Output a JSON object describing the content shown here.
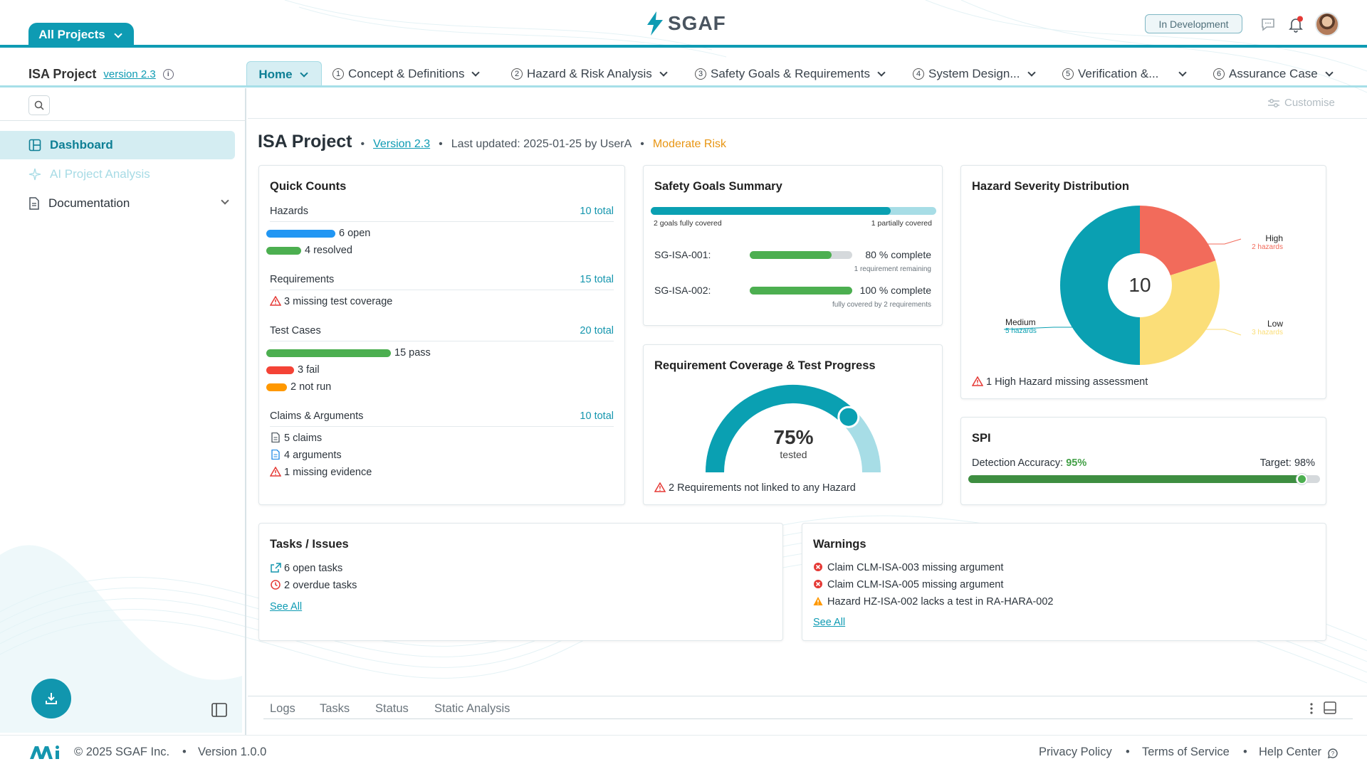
{
  "header": {
    "all_projects": "All Projects",
    "logo_text": "SGAF",
    "status_badge": "In Development"
  },
  "nav": {
    "project_name": "ISA Project",
    "version": "version 2.3",
    "tabs": [
      {
        "label": "Home",
        "num": ""
      },
      {
        "label": "Concept & Definitions",
        "num": "1"
      },
      {
        "label": "Hazard & Risk Analysis",
        "num": "2"
      },
      {
        "label": "Safety Goals & Requirements",
        "num": "3"
      },
      {
        "label": "System Design...",
        "num": "4"
      },
      {
        "label": "Verification &...",
        "num": "5"
      },
      {
        "label": "Assurance Case",
        "num": "6"
      }
    ]
  },
  "sidebar": {
    "items": [
      {
        "label": "Dashboard"
      },
      {
        "label": "AI Project Analysis"
      },
      {
        "label": "Documentation"
      }
    ]
  },
  "toolbar": {
    "customise": "Customise"
  },
  "page": {
    "title": "ISA Project",
    "version": "Version 2.3",
    "updated": "Last updated: 2025-01-25 by UserA",
    "risk": "Moderate Risk",
    "risk_color": "#e89512"
  },
  "quick_counts": {
    "title": "Quick Counts",
    "hazards": {
      "label": "Hazards",
      "total": "10 total",
      "open": "6 open",
      "resolved": "4 resolved"
    },
    "requirements": {
      "label": "Requirements",
      "total": "15 total",
      "missing": "3 missing test coverage"
    },
    "test_cases": {
      "label": "Test Cases",
      "total": "20 total",
      "pass": "15 pass",
      "fail": "3 fail",
      "not_run": "2 not run"
    },
    "claims": {
      "label": "Claims & Arguments",
      "total": "10 total",
      "claims": "5 claims",
      "arguments": "4 arguments",
      "missing": "1 missing evidence"
    }
  },
  "safety_goals": {
    "title": "Safety Goals Summary",
    "coverage_fraction": 0.84,
    "fully_covered": "2 goals fully covered",
    "partially_covered": "1 partially covered",
    "goals": [
      {
        "id": "SG-ISA-001:",
        "fraction": 0.8,
        "status": "80 % complete",
        "note": "1 requirement remaining"
      },
      {
        "id": "SG-ISA-002:",
        "fraction": 1.0,
        "status": "100 % complete",
        "note": "fully covered by 2 requirements"
      }
    ]
  },
  "req_coverage": {
    "title": "Requirement Coverage & Test Progress",
    "percent_value": 75,
    "percent": "75%",
    "percent_label": "tested",
    "warning": "2 Requirements not linked to any Hazard"
  },
  "hazard_severity": {
    "title": "Hazard Severity Distribution",
    "total": "10",
    "slices": [
      {
        "name": "High",
        "detail": "2 hazards",
        "value": 2,
        "color": "#f26b5b"
      },
      {
        "name": "Low",
        "detail": "3 hazards",
        "value": 3,
        "color": "#fbde78"
      },
      {
        "name": "Medium",
        "detail": "5 hazards",
        "value": 5,
        "color": "#0aa0b2"
      }
    ],
    "warning": "1 High Hazard missing assessment"
  },
  "spi": {
    "title": "SPI",
    "detection_label": "Detection Accuracy:",
    "detection_value": "95%",
    "detection_fraction": 0.95,
    "target": "Target: 98%"
  },
  "tasks": {
    "title": "Tasks / Issues",
    "open": "6 open tasks",
    "overdue": "2 overdue tasks",
    "see_all": "See All"
  },
  "warnings": {
    "title": "Warnings",
    "items": [
      {
        "text": "Claim CLM-ISA-003 missing argument",
        "type": "error"
      },
      {
        "text": "Claim CLM-ISA-005 missing argument",
        "type": "error"
      },
      {
        "text": "Hazard HZ-ISA-002 lacks a test in RA-HARA-002",
        "type": "warning"
      }
    ],
    "see_all": "See All"
  },
  "bottom_panel": {
    "tabs": [
      "Logs",
      "Tasks",
      "Status",
      "Static Analysis"
    ]
  },
  "footer": {
    "copyright": "© 2025 SGAF Inc.",
    "version": "Version 1.0.0",
    "links": [
      "Privacy Policy",
      "Terms of Service",
      "Help Center"
    ]
  },
  "colors": {
    "accent": "#0e9bb3",
    "bar_blue": "#2196f3",
    "bar_green": "#4caf50",
    "bar_red": "#f44336",
    "bar_orange": "#ff9800",
    "warn_red": "#e53935"
  }
}
